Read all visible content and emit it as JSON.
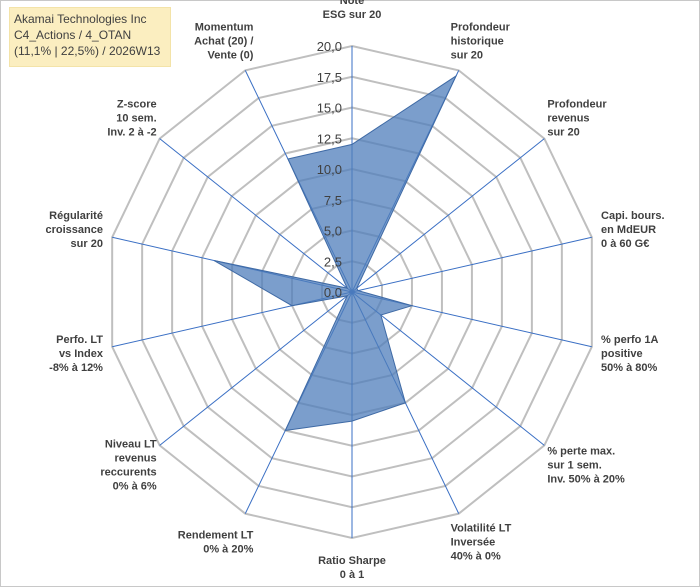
{
  "header": {
    "line1": "Akamai Technologies Inc",
    "line2": "C4_Actions / 4_OTAN",
    "line3": "(11,1% | 22,5%) / 2026W13"
  },
  "colors": {
    "fill": "#4f7dbb",
    "fill_opacity": 0.75,
    "stroke": "#3f6aa5",
    "grid": "#bfbfbf",
    "spoke": "#3a6fc4"
  },
  "chart_data": {
    "type": "radar",
    "rlim": [
      0,
      20
    ],
    "ticks": [
      "0,0",
      "2,5",
      "5,0",
      "7,5",
      "10,0",
      "12,5",
      "15,0",
      "17,5",
      "20,0"
    ],
    "tick_values": [
      0,
      2.5,
      5,
      7.5,
      10,
      12.5,
      15,
      17.5,
      20
    ],
    "grid": true,
    "axes": [
      {
        "label": [
          "Note",
          "ESG sur 20"
        ],
        "value": 12.0
      },
      {
        "label": [
          "Profondeur",
          "historique",
          "sur 20"
        ],
        "value": 19.5
      },
      {
        "label": [
          "Profondeur",
          "revenus",
          "sur 20"
        ],
        "value": 0.5
      },
      {
        "label": [
          "Capi. bours.",
          "en MdEUR",
          "0 à 60 G€"
        ],
        "value": 0.5
      },
      {
        "label": [
          "% perfo 1A",
          "positive",
          "50% à 80%"
        ],
        "value": 5.0
      },
      {
        "label": [
          "% perte max.",
          "sur 1 sem.",
          "Inv. 50% à 20%"
        ],
        "value": 3.0
      },
      {
        "label": [
          "Volatilité LT",
          "Inversée",
          "40% à 0%"
        ],
        "value": 10.0
      },
      {
        "label": [
          "Ratio Sharpe",
          "0 à 1"
        ],
        "value": 10.5
      },
      {
        "label": [
          "Rendement LT",
          "0% à 20%"
        ],
        "value": 12.5
      },
      {
        "label": [
          "Niveau LT",
          "revenus",
          "reccurents",
          "0% à 6%"
        ],
        "value": 0.5
      },
      {
        "label": [
          "Perfo. LT",
          "vs Index",
          "-8% à 12%"
        ],
        "value": 5.0
      },
      {
        "label": [
          "Régularité",
          "croissance",
          "sur 20"
        ],
        "value": 11.5
      },
      {
        "label": [
          "Z-score",
          "10 sem.",
          "Inv. 2 à -2"
        ],
        "value": 0.5
      },
      {
        "label": [
          "Momentum",
          "Achat (20) /",
          "Vente (0)"
        ],
        "value": 12.0
      }
    ]
  }
}
